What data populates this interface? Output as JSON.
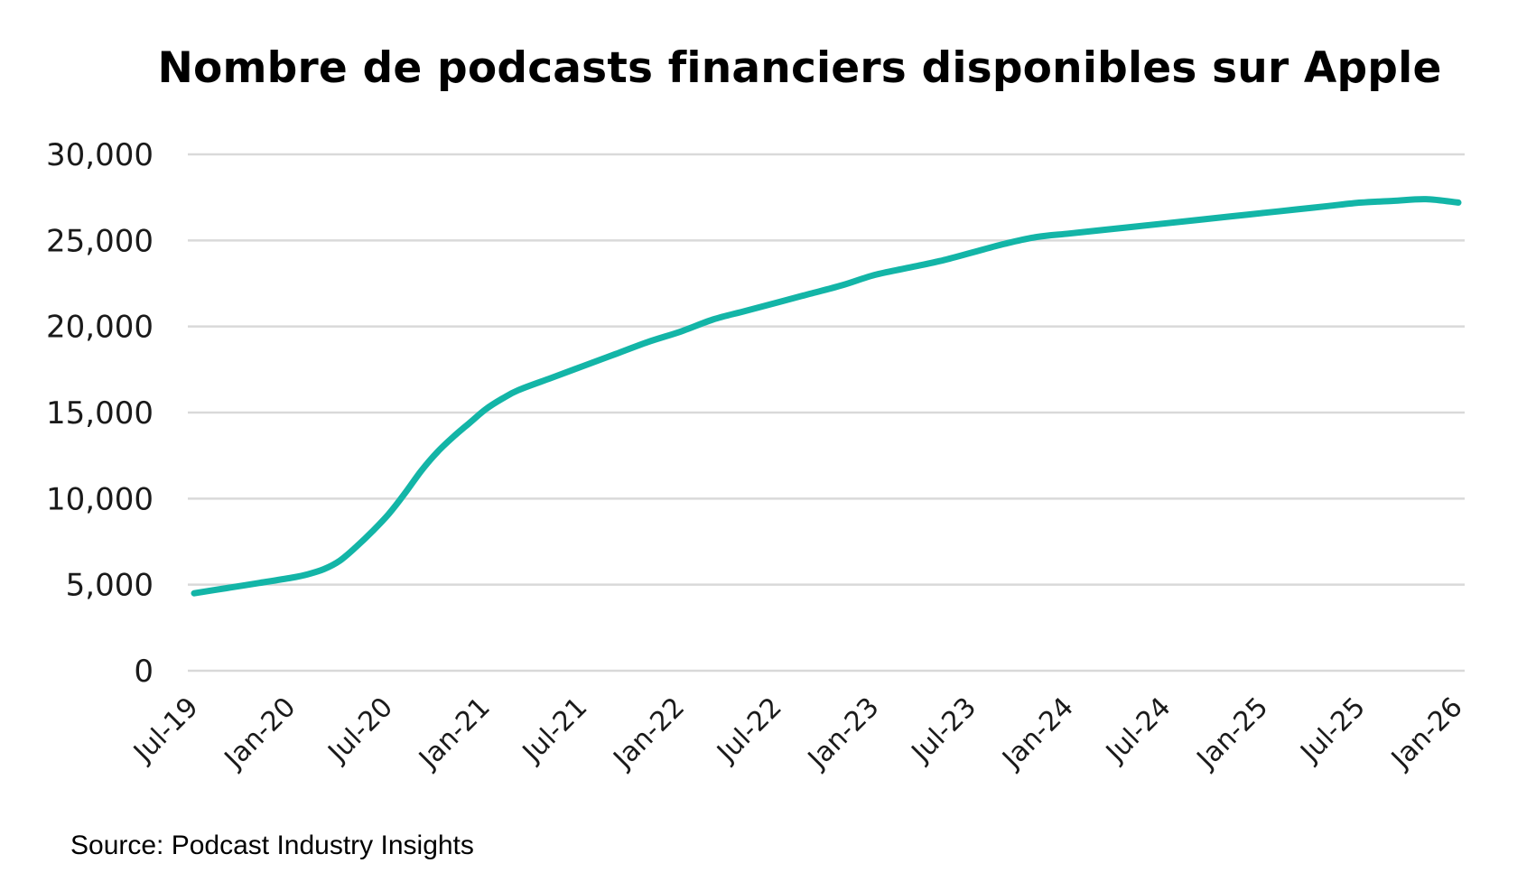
{
  "chart_data": {
    "type": "line",
    "title": "Nombre de podcasts financiers disponibles sur Apple",
    "xlabel": "",
    "ylabel": "",
    "ylim": [
      0,
      30000
    ],
    "yticks": [
      "0",
      "5,000",
      "10,000",
      "15,000",
      "20,000",
      "25,000",
      "30,000"
    ],
    "ytick_values": [
      0,
      5000,
      10000,
      15000,
      20000,
      25000,
      30000
    ],
    "x_tick_labels": [
      "Jul-19",
      "Jan-20",
      "Jul-20",
      "Jan-21",
      "Jul-21",
      "Jan-22",
      "Jul-22",
      "Jan-23",
      "Jul-23",
      "Jan-24",
      "Jul-24",
      "Jan-25",
      "Jul-25",
      "Jan-26"
    ],
    "grid": true,
    "series": [
      {
        "name": "Podcasts financiers",
        "color": "#13B5A7",
        "x_months": [
          0,
          2,
          4,
          6,
          7,
          8,
          9,
          10,
          11,
          12,
          13,
          14,
          15,
          16,
          17,
          18,
          19,
          20,
          22,
          24,
          26,
          28,
          30,
          32,
          34,
          36,
          38,
          40,
          42,
          44,
          46,
          48,
          50,
          52,
          54,
          56,
          58,
          60,
          62,
          64,
          66,
          68,
          70,
          72,
          74,
          76,
          78
        ],
        "values": [
          4500,
          4800,
          5100,
          5400,
          5600,
          5900,
          6400,
          7200,
          8100,
          9100,
          10300,
          11600,
          12700,
          13600,
          14400,
          15200,
          15800,
          16300,
          17000,
          17700,
          18400,
          19100,
          19700,
          20400,
          20900,
          21400,
          21900,
          22400,
          23000,
          23400,
          23800,
          24300,
          24800,
          25200,
          25400,
          25600,
          25800,
          26000,
          26200,
          26400,
          26600,
          26800,
          27000,
          27200,
          27300,
          27400,
          27200
        ]
      }
    ]
  },
  "source": "Source: Podcast Industry Insights"
}
